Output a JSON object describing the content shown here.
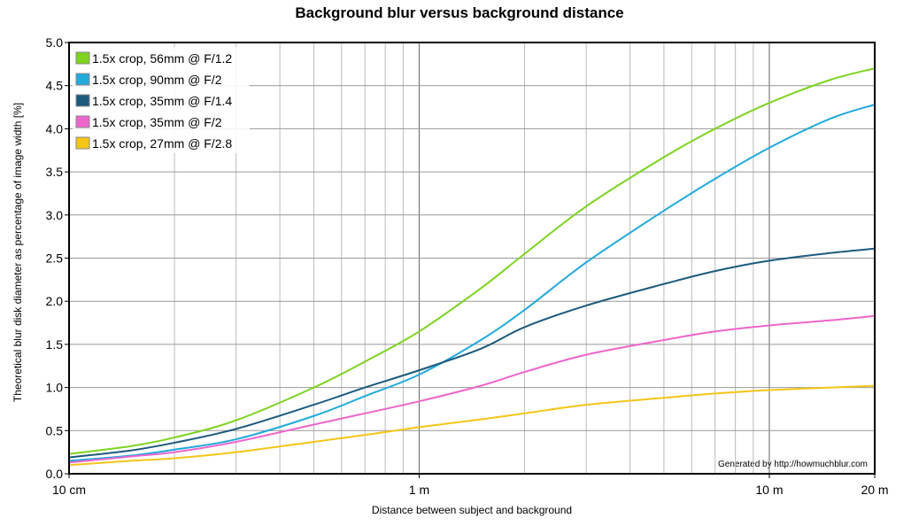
{
  "chart_data": {
    "type": "line",
    "title": "Background blur versus background distance",
    "xlabel": "Distance between subject and background",
    "ylabel": "Theoretical blur disk diameter as percentage of image width [%]",
    "x_scale": "log",
    "x_unit": "m",
    "xlim": [
      0.1,
      20
    ],
    "ylim": [
      0,
      5
    ],
    "grid": true,
    "legend_position": "top-left",
    "x_tick_labels": [
      {
        "value": 0.1,
        "label": "10 cm"
      },
      {
        "value": 1,
        "label": "1 m"
      },
      {
        "value": 10,
        "label": "10 m"
      },
      {
        "value": 20,
        "label": "20 m"
      }
    ],
    "y_tick_labels": [
      "0.0",
      "0.5",
      "1.0",
      "1.5",
      "2.0",
      "2.5",
      "3.0",
      "3.5",
      "4.0",
      "4.5",
      "5.0"
    ],
    "x": [
      0.1,
      0.15,
      0.2,
      0.3,
      0.5,
      0.7,
      1,
      1.5,
      2,
      3,
      5,
      7,
      10,
      15,
      20
    ],
    "series": [
      {
        "name": "1.5x crop, 56mm @ F/1.2",
        "color": "#7ed321",
        "values": [
          0.23,
          0.32,
          0.42,
          0.62,
          1.0,
          1.3,
          1.65,
          2.15,
          2.55,
          3.1,
          3.67,
          4.0,
          4.3,
          4.57,
          4.7
        ]
      },
      {
        "name": "1.5x crop, 90mm @ F/2",
        "color": "#22aadd",
        "values": [
          0.15,
          0.21,
          0.28,
          0.4,
          0.67,
          0.9,
          1.15,
          1.55,
          1.9,
          2.45,
          3.05,
          3.42,
          3.78,
          4.12,
          4.28
        ]
      },
      {
        "name": "1.5x crop, 35mm @ F/1.4",
        "color": "#1c5a7d",
        "values": [
          0.19,
          0.27,
          0.36,
          0.52,
          0.8,
          1.0,
          1.2,
          1.45,
          1.7,
          1.95,
          2.2,
          2.35,
          2.47,
          2.56,
          2.61
        ]
      },
      {
        "name": "1.5x crop, 35mm @ F/2",
        "color": "#ee66cc",
        "values": [
          0.13,
          0.2,
          0.25,
          0.37,
          0.57,
          0.7,
          0.84,
          1.02,
          1.18,
          1.38,
          1.55,
          1.65,
          1.72,
          1.78,
          1.83
        ]
      },
      {
        "name": "1.5x crop, 27mm @ F/2.8",
        "color": "#f5c518",
        "values": [
          0.1,
          0.15,
          0.18,
          0.25,
          0.37,
          0.45,
          0.54,
          0.63,
          0.7,
          0.8,
          0.88,
          0.93,
          0.97,
          1.0,
          1.02
        ]
      }
    ]
  },
  "credit": "Generated by http://howmuchblur.com"
}
